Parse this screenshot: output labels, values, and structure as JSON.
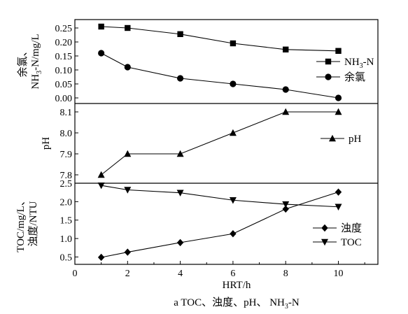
{
  "chart_data": [
    {
      "type": "line",
      "ylabel": "余氯、NH3-N/mg/L",
      "ylabel_lines": [
        "余氯、",
        "NH",
        "3",
        "-N/mg/L"
      ],
      "ylim": [
        -0.02,
        0.28
      ],
      "yticks": [
        0.0,
        0.05,
        0.1,
        0.15,
        0.2,
        0.25
      ],
      "ytick_labels": [
        "0.00",
        "0.05",
        "0.10",
        "0.15",
        "0.20",
        "0.25"
      ],
      "legend_position": "right",
      "series": [
        {
          "name": "NH3-N",
          "name_main": "NH",
          "name_sub": "3",
          "name_tail": "-N",
          "marker": "square",
          "x": [
            1,
            2,
            4,
            6,
            8,
            10
          ],
          "values": [
            0.255,
            0.25,
            0.228,
            0.195,
            0.173,
            0.168
          ]
        },
        {
          "name": "余氯",
          "marker": "circle",
          "x": [
            1,
            2,
            4,
            6,
            8,
            10
          ],
          "values": [
            0.16,
            0.11,
            0.07,
            0.05,
            0.03,
            0.0
          ]
        }
      ]
    },
    {
      "type": "line",
      "ylabel": "pH",
      "ylim": [
        7.76,
        8.14
      ],
      "yticks": [
        7.8,
        7.9,
        8.0,
        8.1
      ],
      "ytick_labels": [
        "7.8",
        "7.9",
        "8.0",
        "8.1"
      ],
      "legend_position": "right",
      "series": [
        {
          "name": "pH",
          "marker": "triangle-up",
          "x": [
            1,
            2,
            4,
            6,
            8,
            10
          ],
          "values": [
            7.8,
            7.9,
            7.9,
            8.0,
            8.1,
            8.1
          ]
        }
      ]
    },
    {
      "type": "line",
      "ylabel": "TOC/mg/L、浊度/NTU",
      "ylabel_lines": [
        "TOC/mg/L、",
        "浊度/NTU"
      ],
      "ylim": [
        0.3,
        2.5
      ],
      "yticks": [
        0.5,
        1.0,
        1.5,
        2.0,
        2.5
      ],
      "ytick_labels": [
        "0.5",
        "1.0",
        "1.5",
        "2.0",
        "2.5"
      ],
      "legend_position": "lower-right",
      "series": [
        {
          "name": "浊度",
          "marker": "diamond",
          "x": [
            1,
            2,
            4,
            6,
            8,
            10
          ],
          "values": [
            0.49,
            0.63,
            0.89,
            1.13,
            1.8,
            2.26
          ]
        },
        {
          "name": "TOC",
          "marker": "triangle-down",
          "x": [
            1,
            2,
            4,
            6,
            8,
            10
          ],
          "values": [
            2.44,
            2.32,
            2.24,
            2.04,
            1.93,
            1.86
          ]
        }
      ]
    }
  ],
  "x_axis": {
    "label": "HRT/h",
    "xlim": [
      0,
      11.5
    ],
    "ticks": [
      0,
      2,
      4,
      6,
      8,
      10
    ],
    "tick_labels": [
      "0",
      "2",
      "4",
      "6",
      "8",
      "10"
    ]
  },
  "caption": {
    "text": "a TOC、浊度、pH、 NH3-N",
    "main": "a TOC、浊度、pH、 NH",
    "sub": "3",
    "tail": "-N"
  }
}
